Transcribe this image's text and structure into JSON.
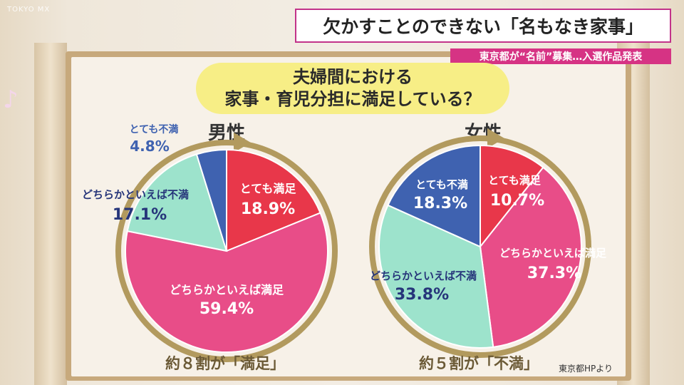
{
  "watermark": "TOKYO MX",
  "headline": "欠かすことのできない「名もなき家事」",
  "subheadline": "東京都が“名前”募集…入選作品発表",
  "question": {
    "line1": "夫婦間における",
    "line2": "家事・育児分担に満足している？"
  },
  "source": "東京都HPより",
  "colors": {
    "very_satisfied": "#e8374a",
    "somewhat_satisfied": "#e84d88",
    "somewhat_dissatisfied": "#9de3cc",
    "very_dissatisfied": "#3f62b0",
    "arrow": "#b29a5e",
    "headline_border": "#c2338a"
  },
  "chart_data": [
    {
      "type": "pie",
      "title": "男性",
      "summary": "約８割が「満足」",
      "slices": [
        {
          "label": "とても満足",
          "value": 18.9,
          "text": "18.9%",
          "color_key": "very_satisfied"
        },
        {
          "label": "どちらかといえば満足",
          "value": 59.4,
          "text": "59.4%",
          "color_key": "somewhat_satisfied"
        },
        {
          "label": "どちらかといえば不満",
          "value": 17.1,
          "text": "17.1%",
          "color_key": "somewhat_dissatisfied"
        },
        {
          "label": "とても不満",
          "value": 4.8,
          "text": "4.8%",
          "color_key": "very_dissatisfied"
        }
      ]
    },
    {
      "type": "pie",
      "title": "女性",
      "summary": "約５割が「不満」",
      "slices": [
        {
          "label": "とても満足",
          "value": 10.7,
          "text": "10.7%",
          "color_key": "very_satisfied"
        },
        {
          "label": "どちらかといえば満足",
          "value": 37.3,
          "text": "37.3%",
          "color_key": "somewhat_satisfied"
        },
        {
          "label": "どちらかといえば不満",
          "value": 33.8,
          "text": "33.8%",
          "color_key": "somewhat_dissatisfied"
        },
        {
          "label": "とても不満",
          "value": 18.3,
          "text": "18.3%",
          "color_key": "very_dissatisfied"
        }
      ]
    }
  ]
}
